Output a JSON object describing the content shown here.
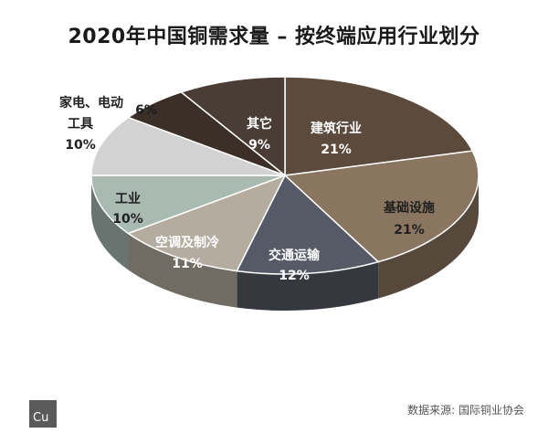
{
  "chart_data": {
    "type": "pie",
    "title": "2020年中国铜需求量 – 按终端应用行业划分",
    "slices": [
      {
        "label": "建筑行业",
        "value": 21,
        "pct_text": "21%",
        "color": "#5c4a3c"
      },
      {
        "label": "基础设施",
        "value": 21,
        "pct_text": "21%",
        "color": "#8a7560"
      },
      {
        "label": "交通运输",
        "value": 12,
        "pct_text": "12%",
        "color": "#565a66"
      },
      {
        "label": "空调及制冷",
        "value": 11,
        "pct_text": "11%",
        "color": "#b5aca0"
      },
      {
        "label": "工业",
        "value": 10,
        "pct_text": "10%",
        "color": "#a9bab3"
      },
      {
        "label": "工具",
        "value": 10,
        "pct_text": "10%",
        "color": "#d2d2d2"
      },
      {
        "label": "家电、电动",
        "value": 6,
        "pct_text": "6%",
        "color": "#3b2f28"
      },
      {
        "label": "其它",
        "value": 9,
        "pct_text": "9%",
        "color": "#4a3d35"
      }
    ]
  },
  "logo_text": "Cu",
  "source_text": "数据来源: 国际铜业协会"
}
